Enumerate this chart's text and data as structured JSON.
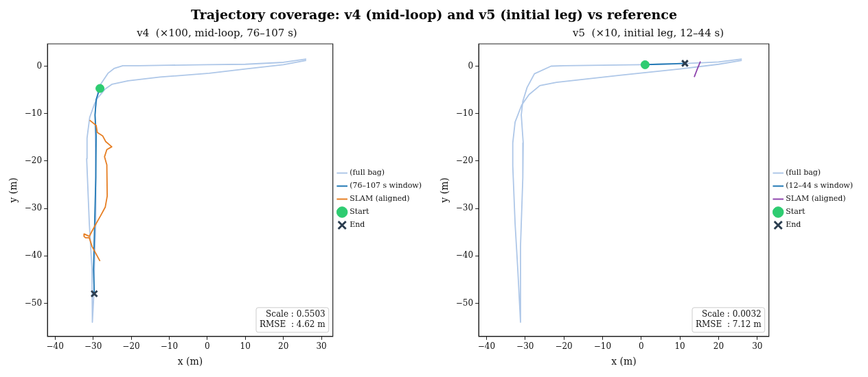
{
  "chart_data": [
    {
      "type": "line",
      "title": "Trajectory coverage: v4 (mid-loop) and v5 (initial leg) vs reference",
      "subtitle": "v4  (×100, mid-loop, 76–107 s)",
      "xlabel": "x (m)",
      "ylabel": "y (m)",
      "xlim": [
        -42,
        33
      ],
      "ylim": [
        -57,
        4.7
      ],
      "xticks": [
        -40,
        -30,
        -20,
        -10,
        0,
        10,
        20,
        30
      ],
      "yticks": [
        -50,
        -40,
        -30,
        -20,
        -10,
        0
      ],
      "legend": "right",
      "annotations": [
        "Scale : 0.5503",
        "RMSE  : 4.62 m"
      ],
      "series": [
        {
          "name": "(full bag)",
          "type": "line",
          "color": "#aec7e8",
          "x": [
            26,
            20,
            10,
            0,
            -10,
            -18,
            -22.2,
            -24.5,
            -26.1,
            -28,
            -28.8,
            -29.3,
            -29.5,
            -29.3,
            -29.3,
            -29.6,
            -29.8,
            -30.2,
            -30.3,
            -31,
            -31.7,
            -31.6,
            -30.9,
            -29.6,
            -28.8,
            -26.8,
            -25,
            -20.8,
            -12.4,
            0.5,
            10,
            20,
            26
          ],
          "values": [
            1.5,
            0.8,
            0.4,
            0.3,
            0.2,
            0.1,
            0.1,
            -0.5,
            -1.5,
            -3.8,
            -5.5,
            -8.5,
            -10.3,
            -23.5,
            -33,
            -40,
            -48,
            -54,
            -42.9,
            -33.2,
            -19.5,
            -15.2,
            -10.8,
            -7.9,
            -6.7,
            -4.8,
            -3.8,
            -3.1,
            -2.3,
            -1.5,
            -0.6,
            0.3,
            1.2
          ]
        },
        {
          "name": "(76–107 s window)",
          "type": "line",
          "color": "#1f77b4",
          "x": [
            -28.2,
            -29.2,
            -29.5,
            -29.2,
            -29.3,
            -29.6,
            -29.9,
            -29.7
          ],
          "values": [
            -4.7,
            -7,
            -10.3,
            -14.7,
            -23.5,
            -33.2,
            -42.9,
            -48
          ]
        },
        {
          "name": "SLAM (aligned)",
          "type": "line",
          "color": "#e67e22",
          "x": [
            -30.9,
            -29.2,
            -28.9,
            -27.5,
            -26.7,
            -25.1,
            -26.4,
            -27,
            -26.4,
            -26.3,
            -26.8,
            -28,
            -29.2,
            -30.3,
            -31,
            -32.3,
            -32.4,
            -32,
            -31,
            -30.3,
            -29.5,
            -28.2
          ],
          "values": [
            -11.4,
            -12.5,
            -14,
            -14.7,
            -15.9,
            -17,
            -17.6,
            -19.1,
            -20.8,
            -27.4,
            -29.7,
            -31.5,
            -33.2,
            -34.8,
            -35.9,
            -35.4,
            -35.9,
            -36.2,
            -36.2,
            -38,
            -39.2,
            -41.1
          ]
        },
        {
          "name": "Start",
          "type": "scatter",
          "marker": "circle",
          "color": "#2ecc71",
          "x": [
            -28.2
          ],
          "values": [
            -4.7
          ]
        },
        {
          "name": "End",
          "type": "scatter",
          "marker": "cross",
          "color": "#2c3e50",
          "x": [
            -29.7
          ],
          "values": [
            -48
          ]
        }
      ]
    },
    {
      "type": "line",
      "subtitle": "v5  (×10, initial leg, 12–44 s)",
      "xlabel": "x (m)",
      "ylabel": "y (m)",
      "xlim": [
        -42,
        33
      ],
      "ylim": [
        -57,
        4.7
      ],
      "xticks": [
        -40,
        -30,
        -20,
        -10,
        0,
        10,
        20,
        30
      ],
      "yticks": [
        -50,
        -40,
        -30,
        -20,
        -10,
        0
      ],
      "legend": "right",
      "annotations": [
        "Scale : 0.0032",
        "RMSE  : 7.12 m"
      ],
      "series": [
        {
          "name": "(full bag)",
          "type": "line",
          "color": "#aec7e8",
          "x": [
            26,
            20,
            10,
            0,
            -10,
            -20,
            -23.3,
            -27.6,
            -29.5,
            -30.6,
            -31,
            -30.5,
            -30.6,
            -31.2,
            -31.2,
            -31.9,
            -32.6,
            -33.2,
            -33.2,
            -32.6,
            -30.9,
            -29,
            -26.2,
            -21.9,
            -5.2,
            10,
            20,
            26
          ],
          "values": [
            1.5,
            0.9,
            0.5,
            0.3,
            0.2,
            0.1,
            0,
            -1.6,
            -4.5,
            -7.4,
            -10.3,
            -16.2,
            -23.5,
            -38,
            -54,
            -42.9,
            -33.2,
            -21,
            -16.2,
            -11.8,
            -8.2,
            -6,
            -4.1,
            -3.4,
            -1.9,
            -0.6,
            0.4,
            1.2
          ]
        },
        {
          "name": "(12–44 s window)",
          "type": "line",
          "color": "#1f77b4",
          "x": [
            1,
            4,
            8,
            11.3
          ],
          "values": [
            0.3,
            0.4,
            0.5,
            0.6
          ]
        },
        {
          "name": "SLAM (aligned)",
          "type": "line",
          "color": "#8e44ad",
          "x": [
            15.3,
            14.5,
            13.7
          ],
          "values": [
            1,
            -0.6,
            -2.3
          ]
        },
        {
          "name": "Start",
          "type": "scatter",
          "marker": "circle",
          "color": "#2ecc71",
          "x": [
            1
          ],
          "values": [
            0.3
          ]
        },
        {
          "name": "End",
          "type": "scatter",
          "marker": "cross",
          "color": "#2c3e50",
          "x": [
            11.3
          ],
          "values": [
            0.6
          ]
        }
      ]
    }
  ]
}
